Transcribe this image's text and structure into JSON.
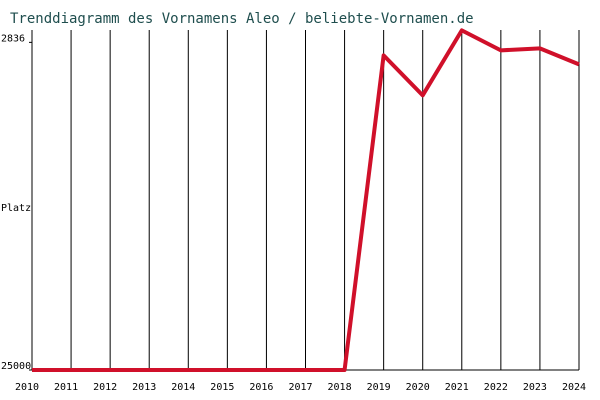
{
  "chart_data": {
    "type": "line",
    "title": "Trenddiagramm des Vornamens Aleo / beliebte-Vornamen.de",
    "ylabel": "Platz",
    "x": [
      2010,
      2011,
      2012,
      2013,
      2014,
      2015,
      2016,
      2017,
      2018,
      2019,
      2020,
      2021,
      2022,
      2023,
      2024
    ],
    "series": [
      {
        "name": "Aleo",
        "color": "#d0102a",
        "values": [
          25000,
          25000,
          25000,
          25000,
          25000,
          25000,
          25000,
          25000,
          25000,
          3715,
          6420,
          2025,
          3377,
          3242,
          4323
        ]
      }
    ],
    "xlim": [
      2010,
      2024
    ],
    "xticks": [
      2010,
      2011,
      2012,
      2013,
      2014,
      2015,
      2016,
      2017,
      2018,
      2019,
      2020,
      2021,
      2022,
      2023,
      2024
    ],
    "ylim": [
      25000,
      2000
    ],
    "yticks": [
      2836,
      25000
    ],
    "grid": true
  }
}
